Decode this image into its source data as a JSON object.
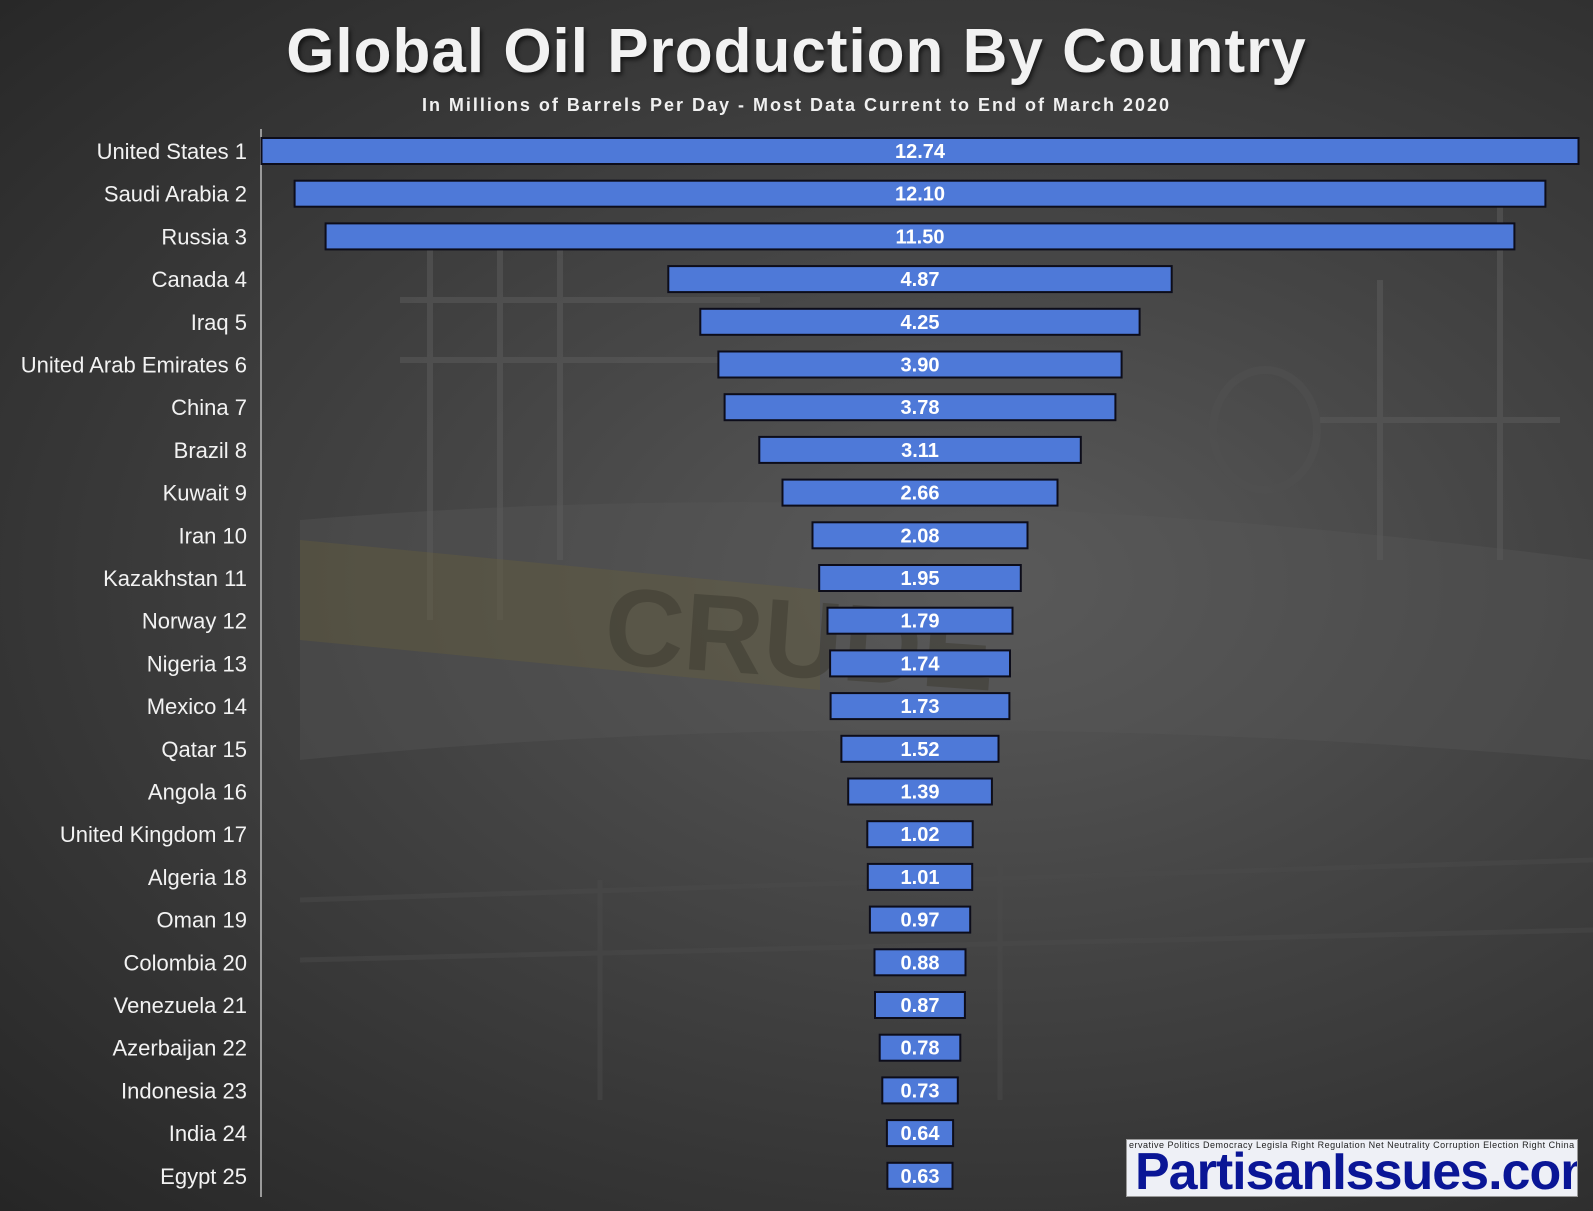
{
  "chart_data": {
    "type": "bar",
    "orientation": "horizontal-centered",
    "title": "Global Oil Production By Country",
    "subtitle": "In Millions of Barrels Per Day - Most Data Current to End of March 2020",
    "categories": [
      "United States 1",
      "Saudi Arabia 2",
      "Russia 3",
      "Canada 4",
      "Iraq 5",
      "United Arab Emirates 6",
      "China 7",
      "Brazil 8",
      "Kuwait 9",
      "Iran 10",
      "Kazakhstan 11",
      "Norway 12",
      "Nigeria 13",
      "Mexico 14",
      "Qatar 15",
      "Angola 16",
      "United Kingdom 17",
      "Algeria 18",
      "Oman 19",
      "Colombia 20",
      "Venezuela 21",
      "Azerbaijan 22",
      "Indonesia 23",
      "India 24",
      "Egypt 25"
    ],
    "values": [
      12.74,
      12.1,
      11.5,
      4.87,
      4.25,
      3.9,
      3.78,
      3.11,
      2.66,
      2.08,
      1.95,
      1.79,
      1.74,
      1.73,
      1.52,
      1.39,
      1.02,
      1.01,
      0.97,
      0.88,
      0.87,
      0.78,
      0.73,
      0.64,
      0.63
    ],
    "value_labels": [
      "12.74",
      "12.10",
      "11.50",
      "4.87",
      "4.25",
      "3.90",
      "3.78",
      "3.11",
      "2.66",
      "2.08",
      "1.95",
      "1.79",
      "1.74",
      "1.73",
      "1.52",
      "1.39",
      "1.02",
      "1.01",
      "0.97",
      "0.88",
      "0.87",
      "0.78",
      "0.73",
      "0.64",
      "0.63"
    ],
    "xlim": [
      0,
      12.74
    ],
    "grid": false,
    "legend": "none",
    "bar_color": "#4e79d8"
  },
  "background_text": "CRUDE",
  "watermark": {
    "brand": "PartisanIssues.com",
    "cloud_words": "ervative Politics Democracy Legisla Right Regulation Net Neutrality Corruption Election Right China Internet Brazil Russia Energy Tech Coal"
  }
}
